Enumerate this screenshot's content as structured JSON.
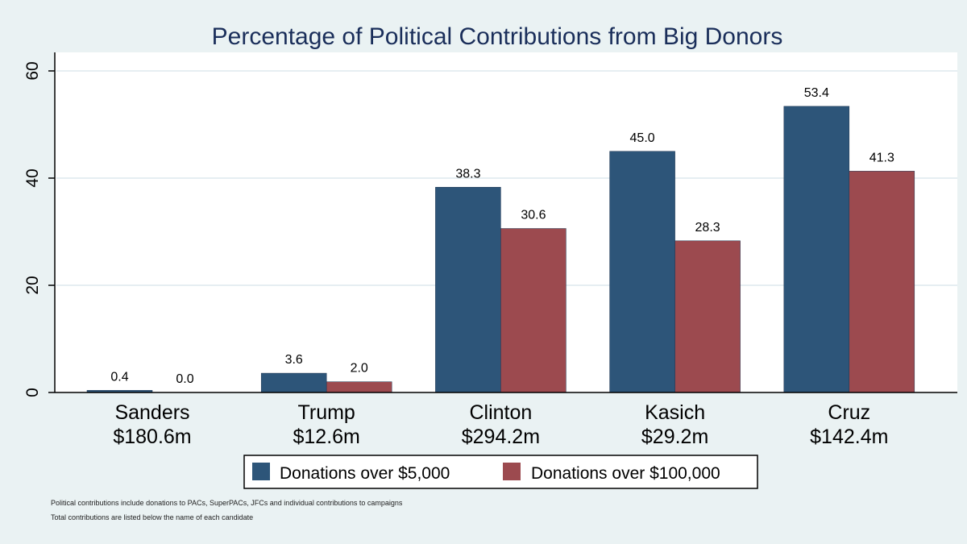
{
  "chart_data": {
    "type": "bar",
    "title": "Percentage of Political Contributions from Big Donors",
    "xlabel": "",
    "ylabel": "",
    "ylim": [
      0,
      63.4
    ],
    "yticks": [
      0,
      20,
      40,
      60
    ],
    "grid": true,
    "legend_position": "bottom",
    "categories": [
      "Sanders",
      "Trump",
      "Clinton",
      "Kasich",
      "Cruz"
    ],
    "category_totals": [
      "$180.6m",
      "$12.6m",
      "$294.2m",
      "$29.2m",
      "$142.4m"
    ],
    "series": [
      {
        "name": "Donations over $5,000",
        "color": "#2d5579",
        "values": [
          0.4,
          3.6,
          38.3,
          45.0,
          53.4
        ]
      },
      {
        "name": "Donations over $100,000",
        "color": "#9c4a4f",
        "values": [
          0.0,
          2.0,
          30.6,
          28.3,
          41.3
        ]
      }
    ]
  },
  "notes": [
    "Political contributions include donations to PACs, SuperPACs, JFCs and individual contributions to campaigns",
    "Total contributions are listed below the name of each candidate"
  ]
}
